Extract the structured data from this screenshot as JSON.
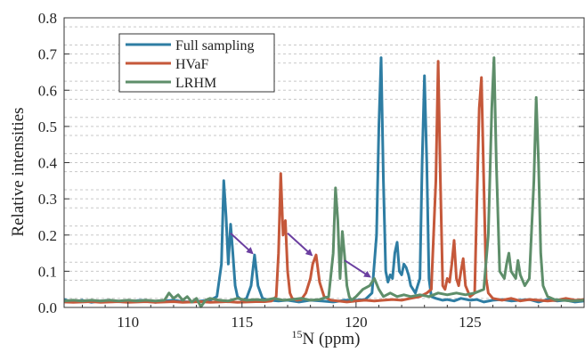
{
  "chart_data": {
    "type": "line",
    "title": "",
    "xlabel_sup": "15",
    "xlabel_main": "N (ppm)",
    "ylabel": "Relative intensities",
    "xlim": [
      107.2,
      130
    ],
    "ylim": [
      0,
      0.8
    ],
    "x_ticks": [
      110,
      115,
      120,
      125
    ],
    "x_tick_labels": [
      "110",
      "115",
      "120",
      "125"
    ],
    "y_ticks": [
      0.0,
      0.1,
      0.2,
      0.3,
      0.4,
      0.5,
      0.6,
      0.7,
      0.8
    ],
    "y_tick_labels": [
      "0.0",
      "0.1",
      "0.2",
      "0.3",
      "0.4",
      "0.5",
      "0.6",
      "0.7",
      "0.8"
    ],
    "grid": "horizontal dashed",
    "legend_placement": "top-left",
    "series": [
      {
        "name": "Full sampling",
        "color": "#2e7da3",
        "x": [
          107.2,
          107.6,
          108.0,
          108.4,
          108.8,
          109.2,
          109.6,
          110.0,
          110.4,
          110.8,
          111.2,
          111.6,
          112.0,
          112.4,
          112.8,
          113.2,
          113.6,
          113.9,
          114.1,
          114.2,
          114.3,
          114.4,
          114.5,
          114.6,
          114.7,
          114.8,
          115.0,
          115.2,
          115.4,
          115.55,
          115.7,
          115.9,
          116.2,
          116.6,
          117.0,
          117.5,
          118.0,
          118.5,
          119.0,
          119.5,
          120.0,
          120.4,
          120.7,
          120.9,
          121.0,
          121.1,
          121.2,
          121.3,
          121.4,
          121.5,
          121.6,
          121.7,
          121.8,
          121.9,
          122.0,
          122.1,
          122.2,
          122.3,
          122.4,
          122.6,
          122.8,
          122.9,
          123.0,
          123.1,
          123.2,
          123.3,
          123.5,
          123.8,
          124.0,
          124.3,
          124.6,
          125.0,
          125.3,
          125.6,
          126.0,
          126.4,
          126.8,
          127.2,
          127.6,
          128.0,
          128.4,
          128.8,
          129.2,
          129.6,
          130.0
        ],
        "y": [
          0.022,
          0.015,
          0.02,
          0.014,
          0.018,
          0.02,
          0.016,
          0.015,
          0.019,
          0.02,
          0.014,
          0.018,
          0.02,
          0.016,
          0.015,
          0.018,
          0.02,
          0.03,
          0.12,
          0.35,
          0.25,
          0.12,
          0.23,
          0.15,
          0.06,
          0.03,
          0.02,
          0.025,
          0.06,
          0.145,
          0.06,
          0.025,
          0.02,
          0.018,
          0.02,
          0.015,
          0.02,
          0.018,
          0.015,
          0.02,
          0.02,
          0.022,
          0.04,
          0.2,
          0.5,
          0.69,
          0.35,
          0.1,
          0.07,
          0.09,
          0.08,
          0.15,
          0.18,
          0.1,
          0.09,
          0.12,
          0.11,
          0.09,
          0.06,
          0.04,
          0.08,
          0.4,
          0.64,
          0.4,
          0.08,
          0.03,
          0.025,
          0.02,
          0.022,
          0.018,
          0.025,
          0.02,
          0.022,
          0.015,
          0.02,
          0.022,
          0.018,
          0.02,
          0.022,
          0.015,
          0.022,
          0.018,
          0.02,
          0.015,
          0.018
        ]
      },
      {
        "name": "HVaF",
        "color": "#c5583a",
        "x": [
          107.2,
          107.6,
          108.0,
          108.4,
          108.8,
          109.2,
          109.6,
          110.0,
          110.4,
          110.8,
          111.2,
          111.6,
          112.0,
          112.4,
          112.8,
          113.2,
          113.6,
          114.0,
          114.4,
          114.8,
          115.2,
          115.6,
          116.0,
          116.3,
          116.5,
          116.6,
          116.7,
          116.8,
          116.9,
          117.0,
          117.1,
          117.2,
          117.4,
          117.6,
          117.8,
          118.0,
          118.1,
          118.25,
          118.4,
          118.6,
          118.9,
          119.2,
          119.6,
          120.0,
          120.4,
          120.8,
          121.2,
          121.6,
          122.0,
          122.4,
          122.8,
          123.1,
          123.3,
          123.5,
          123.6,
          123.7,
          123.8,
          123.9,
          124.0,
          124.1,
          124.2,
          124.3,
          124.4,
          124.5,
          124.6,
          124.7,
          124.8,
          125.0,
          125.2,
          125.3,
          125.4,
          125.5,
          125.6,
          125.7,
          125.8,
          126.0,
          126.4,
          126.8,
          127.2,
          127.6,
          128.0,
          128.4,
          128.8,
          129.2,
          129.6,
          130.0
        ],
        "y": [
          0.015,
          0.014,
          0.015,
          0.016,
          0.014,
          0.015,
          0.016,
          0.014,
          0.015,
          0.016,
          0.014,
          0.015,
          0.016,
          0.014,
          0.015,
          0.016,
          0.014,
          0.015,
          0.016,
          0.014,
          0.015,
          0.016,
          0.016,
          0.018,
          0.03,
          0.15,
          0.37,
          0.2,
          0.24,
          0.1,
          0.04,
          0.025,
          0.02,
          0.022,
          0.04,
          0.08,
          0.12,
          0.145,
          0.07,
          0.03,
          0.02,
          0.018,
          0.015,
          0.018,
          0.02,
          0.018,
          0.02,
          0.022,
          0.02,
          0.025,
          0.03,
          0.04,
          0.05,
          0.35,
          0.68,
          0.35,
          0.06,
          0.05,
          0.08,
          0.07,
          0.12,
          0.185,
          0.08,
          0.06,
          0.1,
          0.135,
          0.06,
          0.03,
          0.04,
          0.3,
          0.55,
          0.635,
          0.35,
          0.08,
          0.04,
          0.025,
          0.02,
          0.025,
          0.018,
          0.022,
          0.02,
          0.018,
          0.02,
          0.025,
          0.02,
          0.022
        ]
      },
      {
        "name": "LRHM",
        "color": "#5e8e6a",
        "x": [
          107.2,
          107.6,
          108.0,
          108.4,
          108.8,
          109.2,
          109.6,
          110.0,
          110.4,
          110.8,
          111.2,
          111.6,
          111.8,
          112.0,
          112.2,
          112.4,
          112.6,
          112.8,
          113.0,
          113.2,
          113.4,
          113.6,
          114.0,
          114.4,
          114.8,
          115.2,
          115.6,
          116.0,
          116.4,
          116.8,
          117.2,
          117.6,
          118.0,
          118.4,
          118.8,
          119.0,
          119.1,
          119.2,
          119.3,
          119.4,
          119.5,
          119.6,
          119.7,
          119.8,
          120.0,
          120.3,
          120.6,
          120.8,
          121.0,
          121.2,
          121.5,
          121.8,
          122.1,
          122.4,
          122.8,
          123.2,
          123.6,
          124.0,
          124.4,
          124.8,
          125.2,
          125.6,
          125.8,
          125.95,
          126.05,
          126.15,
          126.3,
          126.5,
          126.6,
          126.7,
          126.8,
          127.0,
          127.1,
          127.2,
          127.4,
          127.6,
          127.8,
          127.9,
          128.0,
          128.1,
          128.2,
          128.4,
          128.7,
          129.0,
          129.5,
          130.0
        ],
        "y": [
          0.018,
          0.02,
          0.018,
          0.02,
          0.018,
          0.02,
          0.018,
          0.02,
          0.018,
          0.02,
          0.018,
          0.02,
          0.04,
          0.025,
          0.035,
          0.02,
          0.03,
          0.015,
          0.025,
          0.002,
          0.02,
          0.025,
          0.02,
          0.018,
          0.025,
          0.02,
          0.022,
          0.02,
          0.025,
          0.02,
          0.022,
          0.025,
          0.02,
          0.022,
          0.03,
          0.15,
          0.33,
          0.24,
          0.08,
          0.21,
          0.14,
          0.06,
          0.03,
          0.02,
          0.03,
          0.05,
          0.06,
          0.08,
          0.05,
          0.03,
          0.04,
          0.03,
          0.035,
          0.03,
          0.035,
          0.03,
          0.04,
          0.035,
          0.04,
          0.035,
          0.04,
          0.05,
          0.2,
          0.55,
          0.69,
          0.4,
          0.1,
          0.08,
          0.12,
          0.15,
          0.1,
          0.08,
          0.13,
          0.09,
          0.06,
          0.08,
          0.35,
          0.58,
          0.4,
          0.15,
          0.06,
          0.03,
          0.022,
          0.02,
          0.018,
          0.02
        ]
      }
    ],
    "annotations": [
      {
        "type": "arrow",
        "color": "#6b3fa0",
        "from": [
          114.5,
          0.205
        ],
        "to": [
          115.45,
          0.15
        ]
      },
      {
        "type": "arrow",
        "color": "#6b3fa0",
        "from": [
          117.0,
          0.205
        ],
        "to": [
          118.05,
          0.145
        ]
      },
      {
        "type": "arrow",
        "color": "#6b3fa0",
        "from": [
          119.5,
          0.13
        ],
        "to": [
          120.6,
          0.085
        ]
      }
    ]
  }
}
